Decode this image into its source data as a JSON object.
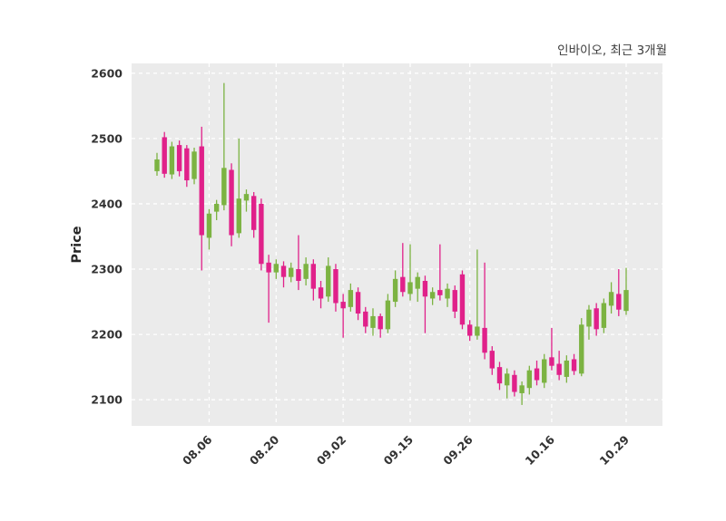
{
  "chart_data": {
    "type": "candlestick",
    "title": "인바이오, 최근 3개월",
    "ylabel": "Price",
    "ylim": [
      2060,
      2615
    ],
    "yticks": [
      2100,
      2200,
      2300,
      2400,
      2500,
      2600
    ],
    "xticks": [
      {
        "index": 7,
        "label": "08.06"
      },
      {
        "index": 16,
        "label": "08.20"
      },
      {
        "index": 25,
        "label": "09.02"
      },
      {
        "index": 34,
        "label": "09.15"
      },
      {
        "index": 42,
        "label": "09.26"
      },
      {
        "index": 53,
        "label": "10.16"
      },
      {
        "index": 63,
        "label": "10.29"
      }
    ],
    "grid": true,
    "legend": "none",
    "candle_format": [
      "open",
      "high",
      "low",
      "close"
    ],
    "colors": {
      "up": "#7cb342",
      "down": "#e0218a",
      "plot_bg": "#ebebeb",
      "grid": "#ffffff",
      "text": "#333333"
    },
    "candles": [
      [
        2450,
        2478,
        2443,
        2468
      ],
      [
        2502,
        2510,
        2440,
        2446
      ],
      [
        2445,
        2495,
        2438,
        2488
      ],
      [
        2490,
        2497,
        2442,
        2450
      ],
      [
        2485,
        2490,
        2426,
        2436
      ],
      [
        2438,
        2486,
        2430,
        2480
      ],
      [
        2488,
        2518,
        2298,
        2352
      ],
      [
        2348,
        2392,
        2330,
        2385
      ],
      [
        2388,
        2406,
        2375,
        2400
      ],
      [
        2398,
        2585,
        2390,
        2455
      ],
      [
        2452,
        2462,
        2335,
        2352
      ],
      [
        2355,
        2500,
        2348,
        2408
      ],
      [
        2405,
        2422,
        2388,
        2415
      ],
      [
        2412,
        2418,
        2348,
        2360
      ],
      [
        2400,
        2408,
        2298,
        2308
      ],
      [
        2310,
        2322,
        2218,
        2295
      ],
      [
        2295,
        2315,
        2285,
        2308
      ],
      [
        2305,
        2312,
        2272,
        2288
      ],
      [
        2288,
        2310,
        2280,
        2302
      ],
      [
        2300,
        2352,
        2268,
        2282
      ],
      [
        2285,
        2318,
        2275,
        2308
      ],
      [
        2308,
        2315,
        2252,
        2270
      ],
      [
        2272,
        2282,
        2240,
        2255
      ],
      [
        2258,
        2318,
        2250,
        2305
      ],
      [
        2300,
        2308,
        2235,
        2248
      ],
      [
        2250,
        2262,
        2195,
        2240
      ],
      [
        2242,
        2278,
        2235,
        2268
      ],
      [
        2265,
        2272,
        2222,
        2232
      ],
      [
        2235,
        2242,
        2202,
        2212
      ],
      [
        2210,
        2240,
        2198,
        2228
      ],
      [
        2228,
        2232,
        2195,
        2208
      ],
      [
        2208,
        2262,
        2202,
        2252
      ],
      [
        2250,
        2298,
        2242,
        2285
      ],
      [
        2288,
        2340,
        2258,
        2265
      ],
      [
        2262,
        2338,
        2252,
        2280
      ],
      [
        2270,
        2295,
        2250,
        2288
      ],
      [
        2282,
        2290,
        2202,
        2258
      ],
      [
        2255,
        2272,
        2245,
        2265
      ],
      [
        2268,
        2338,
        2252,
        2260
      ],
      [
        2255,
        2278,
        2242,
        2270
      ],
      [
        2268,
        2275,
        2225,
        2235
      ],
      [
        2292,
        2298,
        2208,
        2215
      ],
      [
        2215,
        2222,
        2190,
        2198
      ],
      [
        2198,
        2330,
        2192,
        2212
      ],
      [
        2210,
        2310,
        2162,
        2172
      ],
      [
        2175,
        2182,
        2138,
        2148
      ],
      [
        2150,
        2158,
        2115,
        2125
      ],
      [
        2122,
        2148,
        2102,
        2140
      ],
      [
        2138,
        2145,
        2105,
        2112
      ],
      [
        2110,
        2128,
        2092,
        2122
      ],
      [
        2118,
        2152,
        2108,
        2145
      ],
      [
        2148,
        2160,
        2122,
        2130
      ],
      [
        2126,
        2170,
        2118,
        2162
      ],
      [
        2165,
        2210,
        2145,
        2152
      ],
      [
        2155,
        2175,
        2130,
        2138
      ],
      [
        2135,
        2168,
        2126,
        2160
      ],
      [
        2162,
        2170,
        2138,
        2144
      ],
      [
        2140,
        2225,
        2136,
        2215
      ],
      [
        2212,
        2245,
        2192,
        2238
      ],
      [
        2240,
        2248,
        2198,
        2208
      ],
      [
        2210,
        2255,
        2202,
        2248
      ],
      [
        2244,
        2280,
        2232,
        2265
      ],
      [
        2262,
        2300,
        2228,
        2238
      ],
      [
        2236,
        2302,
        2230,
        2268
      ]
    ]
  }
}
